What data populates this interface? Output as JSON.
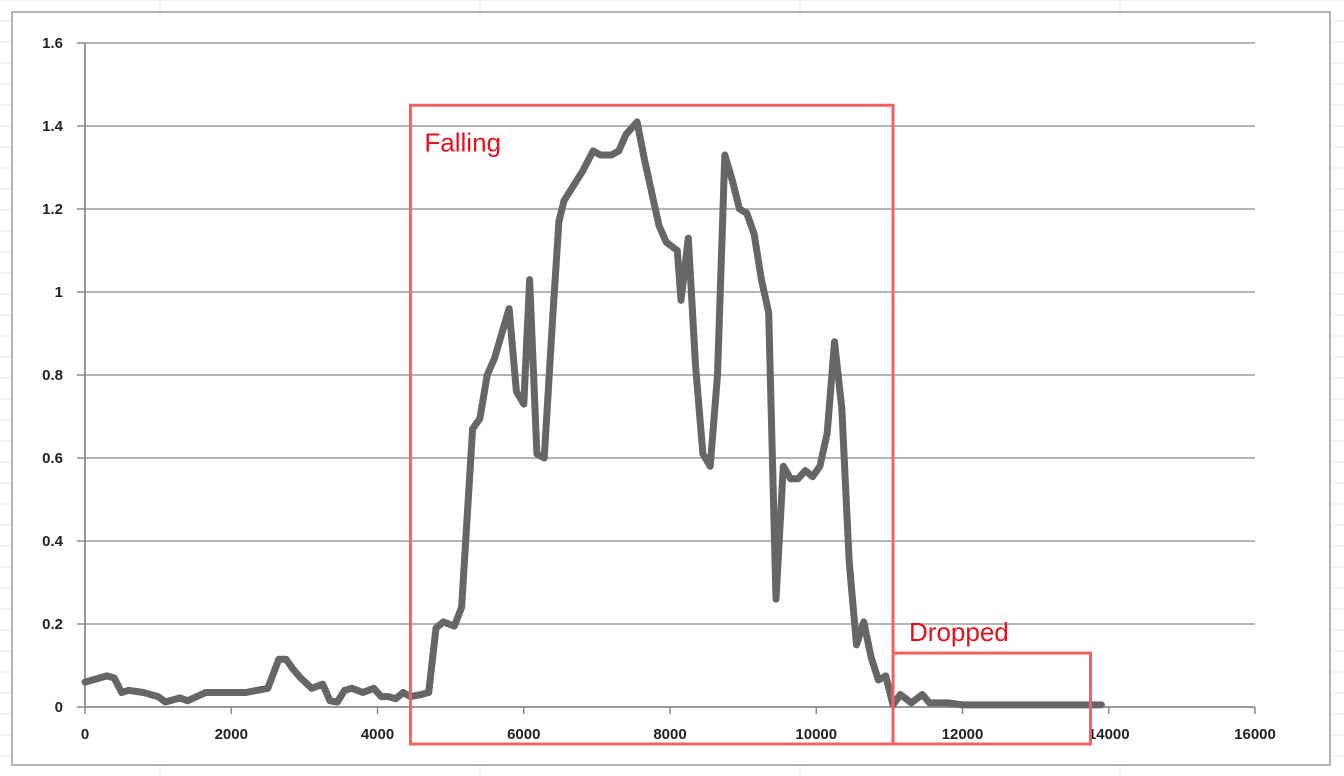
{
  "chart_data": {
    "type": "line",
    "title": "",
    "xlabel": "",
    "ylabel": "",
    "xlim": [
      0,
      16000
    ],
    "ylim": [
      0,
      1.6
    ],
    "x_ticks": [
      "0",
      "2000",
      "4000",
      "6000",
      "8000",
      "10000",
      "12000",
      "14000",
      "16000"
    ],
    "y_ticks": [
      "0",
      "0.2",
      "0.4",
      "0.6",
      "0.8",
      "1",
      "1.2",
      "1.4",
      "1.6"
    ],
    "grid": "horizontal",
    "legend": "none",
    "series": [
      {
        "color": "#666666",
        "points": [
          [
            0,
            0.06
          ],
          [
            200,
            0.07
          ],
          [
            300,
            0.075
          ],
          [
            400,
            0.07
          ],
          [
            500,
            0.035
          ],
          [
            600,
            0.04
          ],
          [
            800,
            0.035
          ],
          [
            1000,
            0.025
          ],
          [
            1100,
            0.012
          ],
          [
            1300,
            0.022
          ],
          [
            1400,
            0.015
          ],
          [
            1650,
            0.035
          ],
          [
            1900,
            0.035
          ],
          [
            2000,
            0.035
          ],
          [
            2200,
            0.035
          ],
          [
            2350,
            0.04
          ],
          [
            2500,
            0.045
          ],
          [
            2650,
            0.115
          ],
          [
            2750,
            0.115
          ],
          [
            2850,
            0.09
          ],
          [
            2950,
            0.07
          ],
          [
            3100,
            0.045
          ],
          [
            3250,
            0.055
          ],
          [
            3350,
            0.015
          ],
          [
            3450,
            0.012
          ],
          [
            3550,
            0.04
          ],
          [
            3650,
            0.045
          ],
          [
            3800,
            0.035
          ],
          [
            3950,
            0.045
          ],
          [
            4050,
            0.025
          ],
          [
            4150,
            0.025
          ],
          [
            4250,
            0.02
          ],
          [
            4350,
            0.035
          ],
          [
            4450,
            0.025
          ],
          [
            4600,
            0.03
          ],
          [
            4700,
            0.035
          ],
          [
            4800,
            0.19
          ],
          [
            4900,
            0.205
          ],
          [
            5050,
            0.195
          ],
          [
            5150,
            0.24
          ],
          [
            5300,
            0.67
          ],
          [
            5400,
            0.695
          ],
          [
            5500,
            0.8
          ],
          [
            5600,
            0.84
          ],
          [
            5800,
            0.96
          ],
          [
            5900,
            0.76
          ],
          [
            6000,
            0.73
          ],
          [
            6080,
            1.03
          ],
          [
            6180,
            0.61
          ],
          [
            6280,
            0.6
          ],
          [
            6400,
            0.95
          ],
          [
            6480,
            1.17
          ],
          [
            6550,
            1.22
          ],
          [
            6800,
            1.29
          ],
          [
            6950,
            1.34
          ],
          [
            7050,
            1.33
          ],
          [
            7200,
            1.33
          ],
          [
            7300,
            1.34
          ],
          [
            7400,
            1.38
          ],
          [
            7550,
            1.41
          ],
          [
            7650,
            1.32
          ],
          [
            7750,
            1.24
          ],
          [
            7850,
            1.16
          ],
          [
            7950,
            1.12
          ],
          [
            8100,
            1.1
          ],
          [
            8150,
            0.98
          ],
          [
            8250,
            1.13
          ],
          [
            8350,
            0.82
          ],
          [
            8450,
            0.61
          ],
          [
            8550,
            0.58
          ],
          [
            8650,
            0.8
          ],
          [
            8750,
            1.33
          ],
          [
            8850,
            1.27
          ],
          [
            8950,
            1.2
          ],
          [
            9050,
            1.19
          ],
          [
            9150,
            1.14
          ],
          [
            9250,
            1.03
          ],
          [
            9350,
            0.95
          ],
          [
            9450,
            0.26
          ],
          [
            9550,
            0.58
          ],
          [
            9650,
            0.55
          ],
          [
            9750,
            0.55
          ],
          [
            9850,
            0.57
          ],
          [
            9950,
            0.555
          ],
          [
            10050,
            0.58
          ],
          [
            10150,
            0.66
          ],
          [
            10250,
            0.88
          ],
          [
            10350,
            0.72
          ],
          [
            10450,
            0.35
          ],
          [
            10550,
            0.15
          ],
          [
            10650,
            0.205
          ],
          [
            10750,
            0.12
          ],
          [
            10850,
            0.065
          ],
          [
            10950,
            0.075
          ],
          [
            11050,
            0.005
          ],
          [
            11150,
            0.03
          ],
          [
            11300,
            0.01
          ],
          [
            11450,
            0.03
          ],
          [
            11550,
            0.01
          ],
          [
            11800,
            0.01
          ],
          [
            12000,
            0.005
          ],
          [
            12500,
            0.005
          ],
          [
            13000,
            0.005
          ],
          [
            13500,
            0.005
          ],
          [
            13900,
            0.005
          ]
        ]
      }
    ],
    "annotations": [
      {
        "text": "Falling",
        "x0": 4450,
        "x1": 11050,
        "y0": 0,
        "y1": 1.45,
        "color": "#f2625f"
      },
      {
        "text": "Dropped",
        "x0": 11050,
        "x1": 13750,
        "y0": 0,
        "y1": 0.13,
        "color": "#f2625f"
      }
    ]
  }
}
